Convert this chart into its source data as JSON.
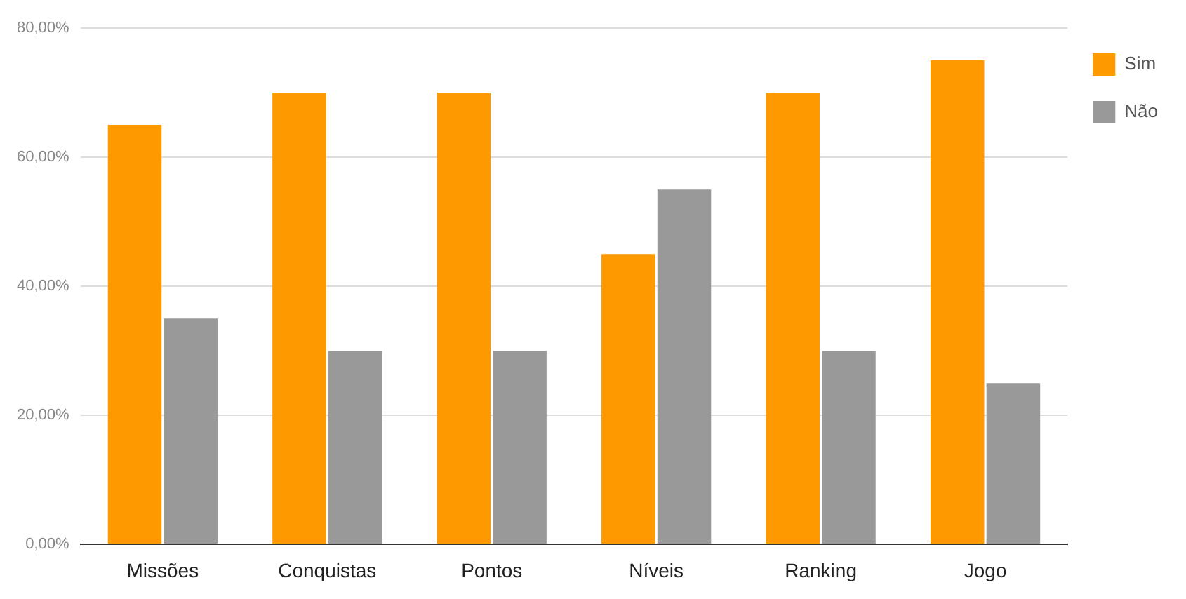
{
  "chart_data": {
    "type": "bar",
    "categories": [
      "Missões",
      "Conquistas",
      "Pontos",
      "Níveis",
      "Ranking",
      "Jogo"
    ],
    "series": [
      {
        "name": "Sim",
        "color": "#ff9900",
        "values": [
          65,
          70,
          70,
          45,
          70,
          75
        ]
      },
      {
        "name": "Não",
        "color": "#999999",
        "values": [
          35,
          30,
          30,
          55,
          30,
          25
        ]
      }
    ],
    "ylim": [
      0,
      80
    ],
    "yticks": [
      {
        "value": 0,
        "label": "0,00%"
      },
      {
        "value": 20,
        "label": "20,00%"
      },
      {
        "value": 40,
        "label": "40,00%"
      },
      {
        "value": 60,
        "label": "60,00%"
      },
      {
        "value": 80,
        "label": "80,00%"
      }
    ],
    "grid": "y",
    "legend": "top right"
  }
}
